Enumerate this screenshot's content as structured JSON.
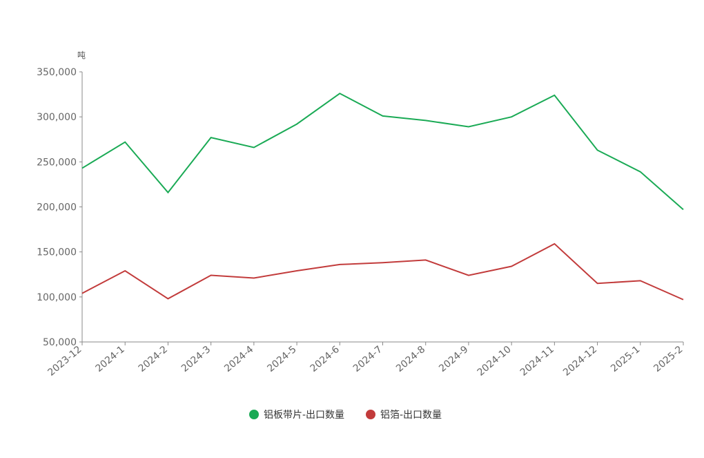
{
  "chart_data": {
    "type": "line",
    "y_axis_label": "吨",
    "categories": [
      "2023-12",
      "2024-1",
      "2024-2",
      "2024-3",
      "2024-4",
      "2024-5",
      "2024-6",
      "2024-7",
      "2024-8",
      "2024-9",
      "2024-10",
      "2024-11",
      "2024-12",
      "2025-1",
      "2025-2"
    ],
    "series": [
      {
        "name": "铝板带片-出口数量",
        "color": "#1aaa55",
        "values": [
          243000,
          272000,
          216000,
          277000,
          266000,
          292000,
          326000,
          301000,
          296000,
          289000,
          300000,
          324000,
          263000,
          239000,
          197000
        ]
      },
      {
        "name": "铝箔-出口数量",
        "color": "#c23b3b",
        "values": [
          104000,
          129000,
          98000,
          124000,
          121000,
          129000,
          136000,
          138000,
          141000,
          124000,
          134000,
          159000,
          115000,
          118000,
          97000
        ]
      }
    ],
    "ylim": [
      50000,
      350000
    ],
    "yticks": [
      {
        "value": 50000,
        "label": "50,000"
      },
      {
        "value": 100000,
        "label": "100,000"
      },
      {
        "value": 150000,
        "label": "150,000"
      },
      {
        "value": 200000,
        "label": "200,000"
      },
      {
        "value": 250000,
        "label": "250,000"
      },
      {
        "value": 300000,
        "label": "300,000"
      },
      {
        "value": 350000,
        "label": "350,000"
      }
    ],
    "legend": "bottom"
  }
}
